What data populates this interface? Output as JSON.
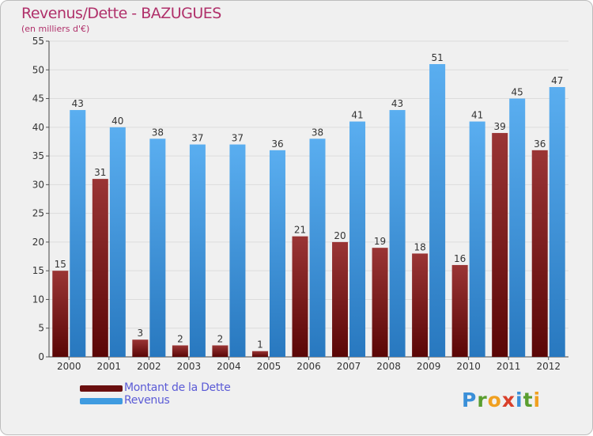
{
  "chart_data": {
    "type": "bar",
    "title": "Revenus/Dette - BAZUGUES",
    "subtitle": "(en milliers d'€)",
    "xlabel": "",
    "ylabel": "",
    "ylim": [
      0,
      55
    ],
    "yticks": [
      0,
      5,
      10,
      15,
      20,
      25,
      30,
      35,
      40,
      45,
      50,
      55
    ],
    "grid": true,
    "legend_position": "bottom-left",
    "categories": [
      "2000",
      "2001",
      "2002",
      "2003",
      "2004",
      "2005",
      "2006",
      "2007",
      "2008",
      "2009",
      "2010",
      "2011",
      "2012"
    ],
    "series": [
      {
        "name": "Montant de la Dette",
        "color": "#7a1c1c",
        "values": [
          15,
          31,
          3,
          2,
          2,
          1,
          21,
          20,
          19,
          18,
          16,
          39,
          36
        ]
      },
      {
        "name": "Revenus",
        "color": "#3f9be0",
        "values": [
          43,
          40,
          38,
          37,
          37,
          36,
          38,
          41,
          43,
          51,
          41,
          45,
          47
        ]
      }
    ]
  },
  "logo": {
    "text": "Proxiti",
    "letters": [
      "P",
      "r",
      "o",
      "x",
      "i",
      "t",
      "i"
    ],
    "colors": [
      "#3a8fd8",
      "#5a9e2f",
      "#f0a020",
      "#d9402b",
      "#3a8fd8",
      "#5a9e2f",
      "#f0a020"
    ]
  }
}
